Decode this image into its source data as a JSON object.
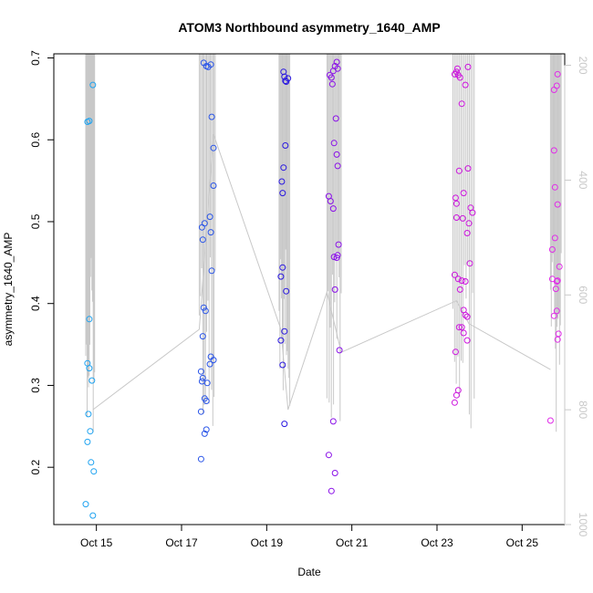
{
  "chart_data": {
    "type": "scatter",
    "title": "ATOM3 Northbound asymmetry_1640_AMP",
    "xlabel": "Date",
    "ylabel": "asymmetry_1640_AMP",
    "xlim": [
      "2020-10-14 00:00",
      "2020-10-26 00:00"
    ],
    "ylim": [
      0.13,
      0.7
    ],
    "x_ticks": [
      {
        "date": "2020-10-15",
        "label": "Oct 15"
      },
      {
        "date": "2020-10-17",
        "label": "Oct 17"
      },
      {
        "date": "2020-10-19",
        "label": "Oct 19"
      },
      {
        "date": "2020-10-21",
        "label": "Oct 21"
      },
      {
        "date": "2020-10-23",
        "label": "Oct 23"
      },
      {
        "date": "2020-10-25",
        "label": "Oct 25"
      }
    ],
    "y_ticks": [
      0.2,
      0.3,
      0.4,
      0.5,
      0.6,
      0.7
    ],
    "y2_ticks": [
      200,
      400,
      600,
      800,
      1000
    ],
    "y2lim": [
      1000,
      180
    ],
    "grid": false,
    "point_style": "open-circle",
    "color_gradient": [
      "#00aaff",
      "#3355ff",
      "#2a00e0",
      "#8800ee",
      "#cc00dd",
      "#ee22ee"
    ],
    "series": [
      {
        "color": "#1fa3f0",
        "points": [
          [
            "2020-10-14 18:00",
            0.155
          ],
          [
            "2020-10-14 19:00",
            0.231
          ],
          [
            "2020-10-14 19:30",
            0.265
          ],
          [
            "2020-10-14 19:00",
            0.327
          ],
          [
            "2020-10-14 20:00",
            0.321
          ],
          [
            "2020-10-14 20:30",
            0.244
          ],
          [
            "2020-10-14 21:00",
            0.206
          ],
          [
            "2020-10-14 22:00",
            0.141
          ],
          [
            "2020-10-14 22:30",
            0.195
          ],
          [
            "2020-10-14 21:30",
            0.306
          ],
          [
            "2020-10-14 20:00",
            0.381
          ],
          [
            "2020-10-14 19:00",
            0.622
          ],
          [
            "2020-10-14 20:00",
            0.623
          ],
          [
            "2020-10-14 22:00",
            0.667
          ]
        ]
      },
      {
        "color": "#2a55e8",
        "points": [
          [
            "2020-10-17 11:00",
            0.21
          ],
          [
            "2020-10-17 11:00",
            0.268
          ],
          [
            "2020-10-17 11:30",
            0.305
          ],
          [
            "2020-10-17 11:00",
            0.317
          ],
          [
            "2020-10-17 13:00",
            0.241
          ],
          [
            "2020-10-17 14:00",
            0.246
          ],
          [
            "2020-10-17 13:00",
            0.284
          ],
          [
            "2020-10-17 14:00",
            0.281
          ],
          [
            "2020-10-17 12:00",
            0.309
          ],
          [
            "2020-10-17 14:30",
            0.303
          ],
          [
            "2020-10-17 16:00",
            0.326
          ],
          [
            "2020-10-17 16:30",
            0.335
          ],
          [
            "2020-10-17 18:00",
            0.331
          ],
          [
            "2020-10-17 12:00",
            0.36
          ],
          [
            "2020-10-17 12:30",
            0.395
          ],
          [
            "2020-10-17 13:30",
            0.391
          ],
          [
            "2020-10-17 17:00",
            0.44
          ],
          [
            "2020-10-17 12:00",
            0.478
          ],
          [
            "2020-10-17 11:30",
            0.493
          ],
          [
            "2020-10-17 13:00",
            0.498
          ],
          [
            "2020-10-17 16:30",
            0.487
          ],
          [
            "2020-10-17 16:00",
            0.506
          ],
          [
            "2020-10-17 18:00",
            0.544
          ],
          [
            "2020-10-17 18:00",
            0.59
          ],
          [
            "2020-10-17 17:00",
            0.628
          ],
          [
            "2020-10-17 12:30",
            0.694
          ],
          [
            "2020-10-17 14:00",
            0.69
          ],
          [
            "2020-10-17 15:00",
            0.689
          ],
          [
            "2020-10-17 16:30",
            0.692
          ]
        ]
      },
      {
        "color": "#2a18e0",
        "points": [
          [
            "2020-10-19 10:00",
            0.253
          ],
          [
            "2020-10-19 09:00",
            0.325
          ],
          [
            "2020-10-19 08:00",
            0.355
          ],
          [
            "2020-10-19 10:00",
            0.366
          ],
          [
            "2020-10-19 08:00",
            0.433
          ],
          [
            "2020-10-19 09:00",
            0.444
          ],
          [
            "2020-10-19 11:00",
            0.415
          ],
          [
            "2020-10-19 09:00",
            0.535
          ],
          [
            "2020-10-19 08:30",
            0.549
          ],
          [
            "2020-10-19 09:30",
            0.566
          ],
          [
            "2020-10-19 10:30",
            0.593
          ],
          [
            "2020-10-19 09:30",
            0.683
          ],
          [
            "2020-10-19 10:00",
            0.677
          ],
          [
            "2020-10-19 10:30",
            0.672
          ],
          [
            "2020-10-19 11:00",
            0.671
          ],
          [
            "2020-10-19 12:00",
            0.675
          ]
        ]
      },
      {
        "color": "#8a10e8",
        "points": [
          [
            "2020-10-20 11:00",
            0.215
          ],
          [
            "2020-10-20 12:30",
            0.171
          ],
          [
            "2020-10-20 14:30",
            0.193
          ],
          [
            "2020-10-20 13:30",
            0.256
          ],
          [
            "2020-10-20 17:00",
            0.343
          ],
          [
            "2020-10-20 14:30",
            0.417
          ],
          [
            "2020-10-20 14:00",
            0.457
          ],
          [
            "2020-10-20 15:30",
            0.456
          ],
          [
            "2020-10-20 16:00",
            0.459
          ],
          [
            "2020-10-20 16:30",
            0.472
          ],
          [
            "2020-10-20 13:30",
            0.516
          ],
          [
            "2020-10-20 11:00",
            0.531
          ],
          [
            "2020-10-20 12:00",
            0.525
          ],
          [
            "2020-10-20 14:00",
            0.596
          ],
          [
            "2020-10-20 15:30",
            0.582
          ],
          [
            "2020-10-20 16:00",
            0.568
          ],
          [
            "2020-10-20 15:00",
            0.626
          ],
          [
            "2020-10-20 11:30",
            0.679
          ],
          [
            "2020-10-20 12:30",
            0.676
          ],
          [
            "2020-10-20 13:30",
            0.684
          ],
          [
            "2020-10-20 14:30",
            0.69
          ],
          [
            "2020-10-20 15:30",
            0.695
          ],
          [
            "2020-10-20 13:00",
            0.668
          ],
          [
            "2020-10-20 16:00",
            0.687
          ]
        ]
      },
      {
        "color": "#cc14dd",
        "points": [
          [
            "2020-10-23 10:00",
            0.279
          ],
          [
            "2020-10-23 11:00",
            0.288
          ],
          [
            "2020-10-23 12:00",
            0.294
          ],
          [
            "2020-10-23 10:30",
            0.341
          ],
          [
            "2020-10-23 12:30",
            0.371
          ],
          [
            "2020-10-23 14:00",
            0.371
          ],
          [
            "2020-10-23 15:00",
            0.364
          ],
          [
            "2020-10-23 17:00",
            0.355
          ],
          [
            "2020-10-23 16:00",
            0.386
          ],
          [
            "2020-10-23 17:00",
            0.384
          ],
          [
            "2020-10-23 15:00",
            0.392
          ],
          [
            "2020-10-23 10:00",
            0.435
          ],
          [
            "2020-10-23 12:00",
            0.43
          ],
          [
            "2020-10-23 14:00",
            0.428
          ],
          [
            "2020-10-23 16:00",
            0.427
          ],
          [
            "2020-10-23 13:00",
            0.417
          ],
          [
            "2020-10-23 18:30",
            0.449
          ],
          [
            "2020-10-23 11:00",
            0.505
          ],
          [
            "2020-10-23 14:30",
            0.504
          ],
          [
            "2020-10-23 17:00",
            0.486
          ],
          [
            "2020-10-23 18:00",
            0.498
          ],
          [
            "2020-10-23 19:00",
            0.517
          ],
          [
            "2020-10-23 20:00",
            0.511
          ],
          [
            "2020-10-23 10:30",
            0.529
          ],
          [
            "2020-10-23 11:00",
            0.522
          ],
          [
            "2020-10-23 15:00",
            0.535
          ],
          [
            "2020-10-23 12:30",
            0.562
          ],
          [
            "2020-10-23 17:30",
            0.565
          ],
          [
            "2020-10-23 14:00",
            0.644
          ],
          [
            "2020-10-23 10:00",
            0.68
          ],
          [
            "2020-10-23 11:00",
            0.683
          ],
          [
            "2020-10-23 12:00",
            0.679
          ],
          [
            "2020-10-23 11:30",
            0.687
          ],
          [
            "2020-10-23 13:00",
            0.676
          ],
          [
            "2020-10-23 16:00",
            0.667
          ],
          [
            "2020-10-23 17:30",
            0.689
          ]
        ]
      },
      {
        "color": "#e02ce8",
        "points": [
          [
            "2020-10-25 16:00",
            0.257
          ],
          [
            "2020-10-25 18:00",
            0.385
          ],
          [
            "2020-10-25 19:30",
            0.391
          ],
          [
            "2020-10-25 20:00",
            0.356
          ],
          [
            "2020-10-25 20:30",
            0.363
          ],
          [
            "2020-10-25 17:00",
            0.43
          ],
          [
            "2020-10-25 19:00",
            0.418
          ],
          [
            "2020-10-25 19:30",
            0.427
          ],
          [
            "2020-10-25 20:00",
            0.428
          ],
          [
            "2020-10-25 21:00",
            0.445
          ],
          [
            "2020-10-25 17:00",
            0.466
          ],
          [
            "2020-10-25 18:30",
            0.48
          ],
          [
            "2020-10-25 20:00",
            0.521
          ],
          [
            "2020-10-25 18:30",
            0.542
          ],
          [
            "2020-10-25 18:00",
            0.587
          ],
          [
            "2020-10-25 18:00",
            0.661
          ],
          [
            "2020-10-25 19:30",
            0.666
          ],
          [
            "2020-10-25 20:00",
            0.68
          ]
        ]
      }
    ],
    "secondary_line": {
      "color": "#c8c8c8",
      "axis": "right",
      "points": [
        [
          "2020-10-14 22:00",
          800
        ],
        [
          "2020-10-17 10:00",
          660
        ],
        [
          "2020-10-17 18:00",
          320
        ],
        [
          "2020-10-19 08:00",
          660
        ],
        [
          "2020-10-19 12:00",
          800
        ],
        [
          "2020-10-20 10:00",
          595
        ],
        [
          "2020-10-20 18:00",
          700
        ],
        [
          "2020-10-23 11:00",
          610
        ],
        [
          "2020-10-23 18:00",
          650
        ],
        [
          "2020-10-25 16:00",
          730
        ]
      ],
      "burst_windows": [
        [
          "2020-10-14 18:00",
          "2020-10-14 23:00"
        ],
        [
          "2020-10-17 10:00",
          "2020-10-17 19:00"
        ],
        [
          "2020-10-19 07:00",
          "2020-10-19 13:00"
        ],
        [
          "2020-10-20 10:00",
          "2020-10-20 18:00"
        ],
        [
          "2020-10-23 09:00",
          "2020-10-23 21:00"
        ],
        [
          "2020-10-25 16:00",
          "2020-10-25 22:00"
        ]
      ]
    }
  }
}
